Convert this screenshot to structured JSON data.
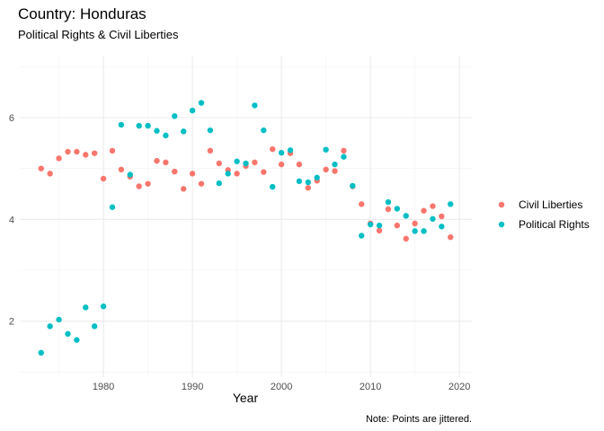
{
  "chart_data": {
    "type": "scatter",
    "title": "Country: Honduras",
    "subtitle": "Political Rights & Civil Liberties",
    "xlabel": "Year",
    "ylabel": "",
    "caption": "Note: Points are jittered.",
    "xlim": [
      1970.6,
      2021.4
    ],
    "ylim": [
      0.9,
      7.2
    ],
    "x_ticks": [
      1980,
      1990,
      2000,
      2010,
      2020
    ],
    "y_ticks": [
      2,
      4,
      6
    ],
    "grid": true,
    "legend_position": "right",
    "series": [
      {
        "name": "Civil Liberties",
        "color": "#F8766D",
        "points": [
          [
            1973,
            5.0
          ],
          [
            1974,
            4.9
          ],
          [
            1975,
            5.2
          ],
          [
            1976,
            5.33
          ],
          [
            1977,
            5.33
          ],
          [
            1978,
            5.27
          ],
          [
            1979,
            5.3
          ],
          [
            1980,
            4.8
          ],
          [
            1981,
            5.35
          ],
          [
            1982,
            4.98
          ],
          [
            1983,
            4.84
          ],
          [
            1984,
            4.65
          ],
          [
            1985,
            4.7
          ],
          [
            1986,
            5.15
          ],
          [
            1987,
            5.12
          ],
          [
            1988,
            4.94
          ],
          [
            1989,
            4.6
          ],
          [
            1990,
            4.9
          ],
          [
            1991,
            4.7
          ],
          [
            1992,
            5.35
          ],
          [
            1993,
            5.1
          ],
          [
            1994,
            4.97
          ],
          [
            1995,
            4.9
          ],
          [
            1996,
            5.05
          ],
          [
            1997,
            5.12
          ],
          [
            1998,
            4.93
          ],
          [
            1999,
            5.38
          ],
          [
            2000,
            5.08
          ],
          [
            2001,
            5.3
          ],
          [
            2002,
            5.08
          ],
          [
            2003,
            4.62
          ],
          [
            2004,
            4.76
          ],
          [
            2005,
            4.98
          ],
          [
            2006,
            4.95
          ],
          [
            2007,
            5.35
          ],
          [
            2008,
            4.65
          ],
          [
            2009,
            4.3
          ],
          [
            2010,
            3.92
          ],
          [
            2011,
            3.78
          ],
          [
            2012,
            4.2
          ],
          [
            2013,
            3.88
          ],
          [
            2014,
            3.62
          ],
          [
            2015,
            3.92
          ],
          [
            2016,
            4.17
          ],
          [
            2017,
            4.26
          ],
          [
            2018,
            4.06
          ],
          [
            2019,
            3.65
          ]
        ]
      },
      {
        "name": "Political Rights",
        "color": "#00BFC4",
        "points": [
          [
            1973,
            1.38
          ],
          [
            1974,
            1.9
          ],
          [
            1975,
            2.03
          ],
          [
            1976,
            1.75
          ],
          [
            1977,
            1.63
          ],
          [
            1978,
            2.27
          ],
          [
            1979,
            1.9
          ],
          [
            1980,
            2.29
          ],
          [
            1981,
            4.24
          ],
          [
            1982,
            5.86
          ],
          [
            1983,
            4.88
          ],
          [
            1984,
            5.84
          ],
          [
            1985,
            5.84
          ],
          [
            1986,
            5.74
          ],
          [
            1987,
            5.65
          ],
          [
            1988,
            6.03
          ],
          [
            1989,
            5.73
          ],
          [
            1990,
            6.14
          ],
          [
            1991,
            6.29
          ],
          [
            1992,
            5.75
          ],
          [
            1993,
            4.71
          ],
          [
            1994,
            4.9
          ],
          [
            1995,
            5.14
          ],
          [
            1996,
            5.1
          ],
          [
            1997,
            6.24
          ],
          [
            1998,
            5.75
          ],
          [
            1999,
            4.64
          ],
          [
            2000,
            5.31
          ],
          [
            2001,
            5.36
          ],
          [
            2002,
            4.75
          ],
          [
            2003,
            4.73
          ],
          [
            2004,
            4.82
          ],
          [
            2005,
            5.37
          ],
          [
            2006,
            5.08
          ],
          [
            2007,
            5.23
          ],
          [
            2008,
            4.66
          ],
          [
            2009,
            3.68
          ],
          [
            2010,
            3.9
          ],
          [
            2011,
            3.88
          ],
          [
            2012,
            4.34
          ],
          [
            2013,
            4.21
          ],
          [
            2014,
            4.07
          ],
          [
            2015,
            3.77
          ],
          [
            2016,
            3.77
          ],
          [
            2017,
            4.01
          ],
          [
            2018,
            3.86
          ],
          [
            2019,
            4.3
          ]
        ]
      }
    ]
  }
}
